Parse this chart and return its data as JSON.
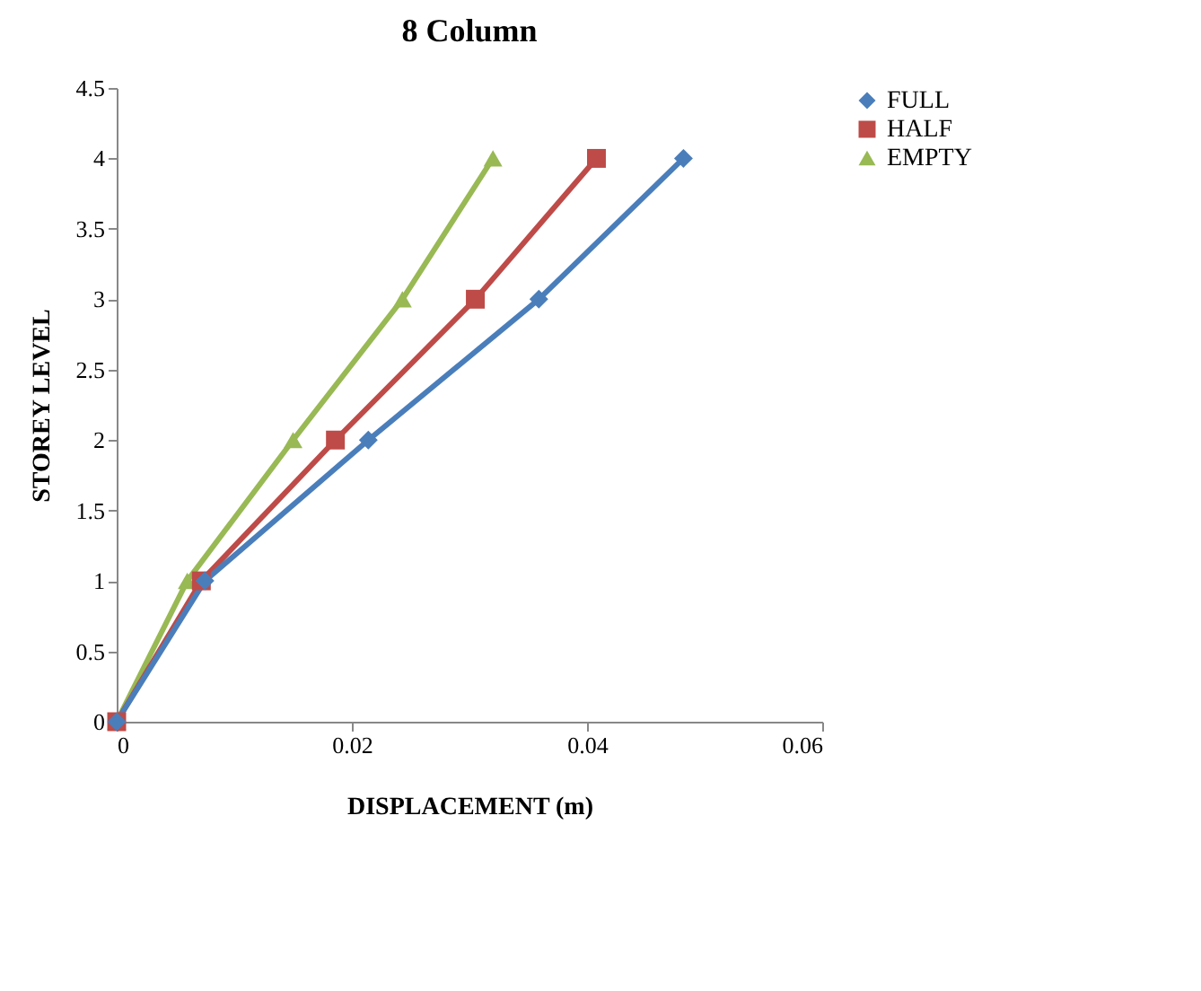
{
  "chart_data": {
    "type": "line",
    "title": "8 Column",
    "xlabel": "DISPLACEMENT (m)",
    "ylabel": "STOREY LEVEL",
    "xlim": [
      0,
      0.06
    ],
    "xticks": [
      0,
      0.02,
      0.04,
      0.06
    ],
    "ylim": [
      0,
      4.5
    ],
    "yticks": [
      0,
      0.5,
      1,
      1.5,
      2,
      2.5,
      3,
      3.5,
      4,
      4.5
    ],
    "grid": false,
    "legend": "right",
    "series": [
      {
        "name": "FULL",
        "color": "#4a7ebb",
        "marker": "diamond",
        "x": [
          0,
          0.0075,
          0.0214,
          0.0359,
          0.0482
        ],
        "values": [
          0,
          1,
          2,
          3,
          4
        ]
      },
      {
        "name": "HALF",
        "color": "#be4b48",
        "marker": "square",
        "x": [
          0,
          0.0072,
          0.0186,
          0.0305,
          0.0408
        ],
        "values": [
          0,
          1,
          2,
          3,
          4
        ]
      },
      {
        "name": "EMPTY",
        "color": "#98b954",
        "marker": "triangle",
        "x": [
          0,
          0.006,
          0.015,
          0.0243,
          0.032
        ],
        "values": [
          0,
          1,
          2,
          3,
          4
        ]
      }
    ]
  }
}
